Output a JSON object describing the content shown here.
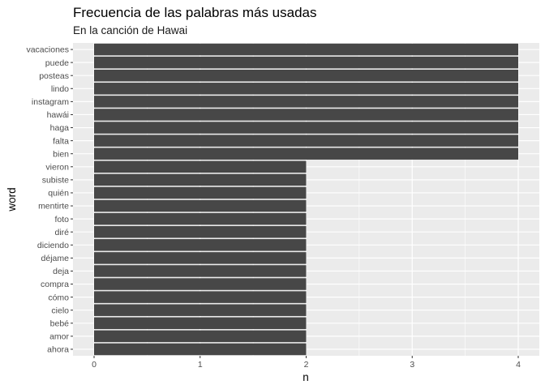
{
  "chart_data": {
    "type": "bar",
    "orientation": "horizontal",
    "title": "Frecuencia de las palabras más usadas",
    "subtitle": "En la canción de Hawai",
    "xlabel": "n",
    "ylabel": "word",
    "xlim": [
      0,
      4
    ],
    "x_ticks": [
      "0",
      "1",
      "2",
      "3",
      "4"
    ],
    "grid": true,
    "categories": [
      "vacaciones",
      "puede",
      "posteas",
      "lindo",
      "instagram",
      "hawái",
      "haga",
      "falta",
      "bien",
      "vieron",
      "subiste",
      "quién",
      "mentirte",
      "foto",
      "diré",
      "diciendo",
      "déjame",
      "deja",
      "compra",
      "cómo",
      "cielo",
      "bebé",
      "amor",
      "ahora"
    ],
    "values": [
      4,
      4,
      4,
      4,
      4,
      4,
      4,
      4,
      4,
      2,
      2,
      2,
      2,
      2,
      2,
      2,
      2,
      2,
      2,
      2,
      2,
      2,
      2,
      2
    ],
    "colors": {
      "bar": "#474747",
      "panel": "#ebebeb",
      "grid": "#ffffff"
    }
  }
}
